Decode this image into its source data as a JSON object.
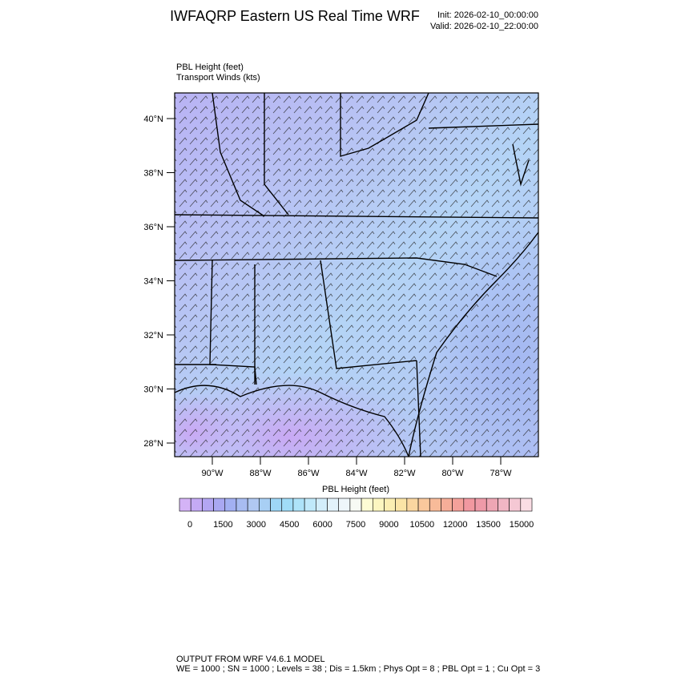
{
  "header": {
    "title": "IWFAQRP Eastern US Real Time WRF",
    "init": "Init: 2026-02-10_00:00:00",
    "valid": "Valid: 2026-02-10_22:00:00"
  },
  "fields": [
    "PBL Height   (feet)",
    "Transport Winds   (kts)"
  ],
  "map": {
    "lat_labels": [
      "40°N",
      "38°N",
      "36°N",
      "34°N",
      "32°N",
      "30°N",
      "28°N"
    ],
    "lon_labels": [
      "90°W",
      "88°W",
      "86°W",
      "84°W",
      "82°W",
      "80°W",
      "78°W"
    ]
  },
  "colorbar": {
    "title": "PBL Height  (feet)",
    "labels": [
      "0",
      "1500",
      "3000",
      "4500",
      "6000",
      "7500",
      "9000",
      "10500",
      "12000",
      "13500",
      "15000"
    ],
    "colors": [
      "#d4b3f6",
      "#c4aaf5",
      "#b3a6f3",
      "#a9a8f2",
      "#a2b0f2",
      "#a8bcf2",
      "#b0c8f2",
      "#a8cff4",
      "#9ed6f6",
      "#a0dcf8",
      "#aee3f9",
      "#c0e9fa",
      "#d3eefb",
      "#e3f2fb",
      "#eef6fb",
      "#f7faf4",
      "#fdfcd4",
      "#fcf6c0",
      "#fbeeb2",
      "#fbe4a6",
      "#fad6a0",
      "#f9c89c",
      "#f8bb99",
      "#f6ad98",
      "#f4a19a",
      "#f198a0",
      "#ee9aa8",
      "#eea6b4",
      "#f1b6c4",
      "#f5c8d4",
      "#fadde4"
    ]
  },
  "footer": [
    "OUTPUT FROM WRF V4.6.1 MODEL",
    "WE = 1000 ; SN = 1000 ; Levels = 38 ; Dis = 1.5km ; Phys Opt = 8 ; PBL Opt = 1 ; Cu Opt = 3"
  ]
}
